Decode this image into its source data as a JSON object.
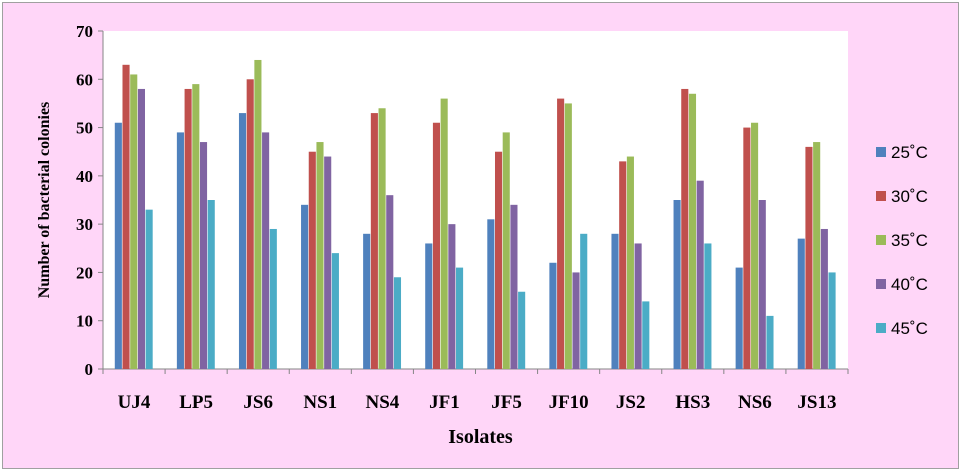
{
  "chart_data": {
    "type": "bar",
    "xlabel": "Isolates",
    "ylabel": "Number of bacterial colonies",
    "ylim": [
      0,
      70
    ],
    "yticks": [
      0,
      10,
      20,
      30,
      40,
      50,
      60,
      70
    ],
    "grid": false,
    "legend_position": "right",
    "categories": [
      "UJ4",
      "LP5",
      "JS6",
      "NS1",
      "NS4",
      "JF1",
      "JF5",
      "JF10",
      "JS2",
      "HS3",
      "NS6",
      "JS13"
    ],
    "series": [
      {
        "name": "25˚C",
        "color": "#4f81bd",
        "values": [
          51,
          49,
          53,
          34,
          28,
          26,
          31,
          22,
          28,
          35,
          21,
          27
        ]
      },
      {
        "name": "30˚C",
        "color": "#c0504d",
        "values": [
          63,
          58,
          60,
          45,
          53,
          51,
          45,
          56,
          43,
          58,
          50,
          46
        ]
      },
      {
        "name": "35˚C",
        "color": "#9bbb59",
        "values": [
          61,
          59,
          64,
          47,
          54,
          56,
          49,
          55,
          44,
          57,
          51,
          47
        ]
      },
      {
        "name": "40˚C",
        "color": "#8064a2",
        "values": [
          58,
          47,
          49,
          44,
          36,
          30,
          34,
          20,
          26,
          39,
          35,
          29
        ]
      },
      {
        "name": "45˚C",
        "color": "#4bacc6",
        "values": [
          33,
          35,
          29,
          24,
          19,
          21,
          16,
          28,
          14,
          26,
          11,
          20
        ]
      }
    ]
  }
}
